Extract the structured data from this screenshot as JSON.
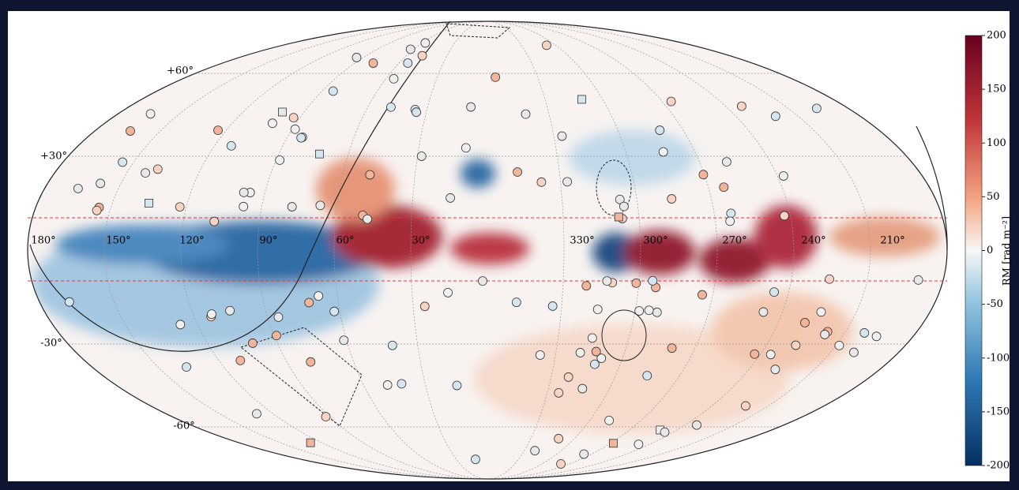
{
  "map": {
    "longitude_labels": [
      "180°",
      "150°",
      "120°",
      "90°",
      "60°",
      "30°",
      "330°",
      "300°",
      "270°",
      "240°",
      "210°"
    ],
    "latitude_labels": [
      "+60°",
      "+30°",
      "-30°",
      "-60°"
    ],
    "colorbar": {
      "label": "RM [rad m⁻²]",
      "lim": [
        -200,
        200
      ],
      "ticks": [
        -200,
        -150,
        -100,
        -50,
        0,
        50,
        100,
        150,
        200
      ]
    }
  }
}
